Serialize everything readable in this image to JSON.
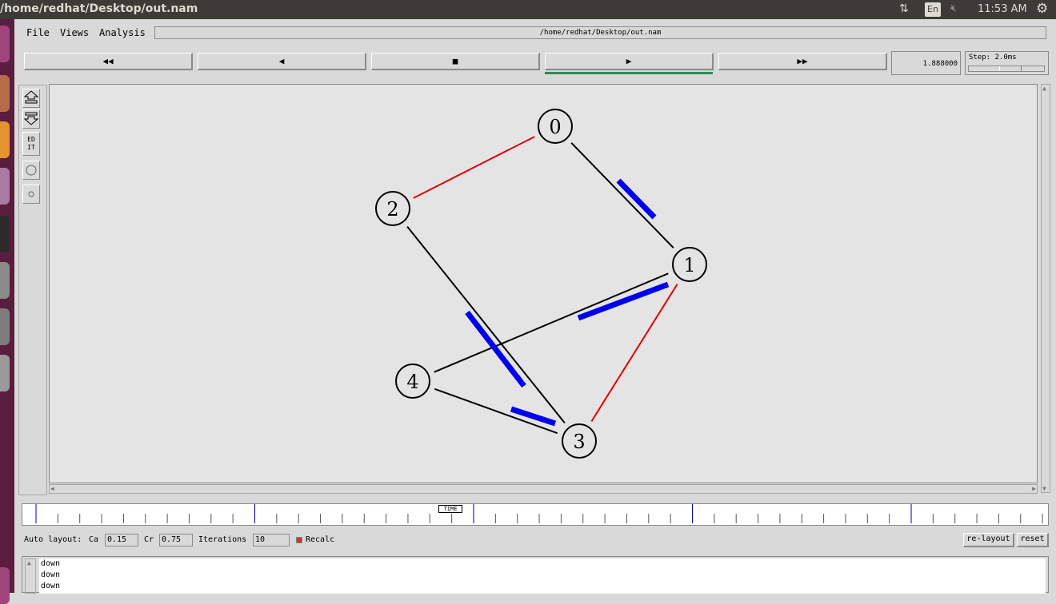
{
  "top_panel": {
    "window_title": "/home/redhat/Desktop/out.nam",
    "lang": "En",
    "clock": "11:53 AM"
  },
  "menu": {
    "file": "File",
    "views": "Views",
    "analysis": "Analysis",
    "path": "/home/redhat/Desktop/out.nam"
  },
  "controls": {
    "rewind": "◀◀",
    "back": "◀",
    "stop": "■",
    "play": "▶",
    "fast_forward": "▶▶",
    "time": "1.888000",
    "step_label": "Step: 2.0ms",
    "step_fraction": 0.42
  },
  "toolbar": {
    "edit": "ED IT"
  },
  "graph": {
    "nodes": [
      {
        "id": "0"
      },
      {
        "id": "1"
      },
      {
        "id": "2"
      },
      {
        "id": "3"
      },
      {
        "id": "4"
      }
    ],
    "links": [
      {
        "from": "0",
        "to": "2",
        "color": "#e00000"
      },
      {
        "from": "0",
        "to": "1",
        "color": "#000000"
      },
      {
        "from": "2",
        "to": "3",
        "color": "#000000"
      },
      {
        "from": "1",
        "to": "4",
        "color": "#000000"
      },
      {
        "from": "1",
        "to": "3",
        "color": "#e00000"
      },
      {
        "from": "4",
        "to": "3",
        "color": "#000000"
      }
    ],
    "packet_color": "#0000ee"
  },
  "timeline": {
    "marker": "TIME"
  },
  "autolayout": {
    "label": "Auto layout:",
    "ca_label": "Ca",
    "ca_value": "0.15",
    "cr_label": "Cr",
    "cr_value": "0.75",
    "iterations_label": "Iterations",
    "iterations_value": "10",
    "recalc_label": "Recalc",
    "relayout": "re-layout",
    "reset": "reset"
  },
  "log": {
    "lines": [
      "down",
      "down",
      "down"
    ]
  },
  "colors": {
    "canvas": "#e4e4e4",
    "active": "#2e8b57",
    "launcher": "#5a1d3f",
    "panel": "#3c3b37"
  }
}
